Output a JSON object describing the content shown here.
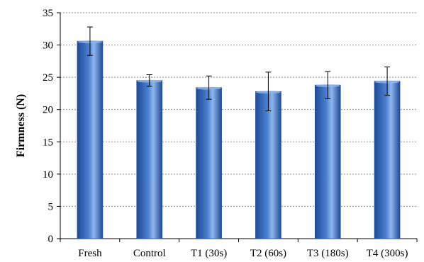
{
  "chart_data": {
    "type": "bar",
    "title": "",
    "xlabel": "",
    "ylabel": "Firmness (N)",
    "categories": [
      "Fresh",
      "Control",
      "T1 (30s)",
      "T2 (60s)",
      "T3 (180s)",
      "T4 (300s)"
    ],
    "values": [
      30.6,
      24.5,
      23.4,
      22.8,
      23.8,
      24.4
    ],
    "errors": [
      2.2,
      0.9,
      1.8,
      3.0,
      2.1,
      2.2
    ],
    "ylim": [
      0,
      35
    ],
    "yticks": [
      0,
      5,
      10,
      15,
      20,
      25,
      30,
      35
    ],
    "grid": true,
    "legend": "none",
    "colors": {
      "bar_light": "#8fb6ee",
      "bar_mid": "#4a7fd0",
      "bar_dark": "#1f4a94"
    }
  }
}
